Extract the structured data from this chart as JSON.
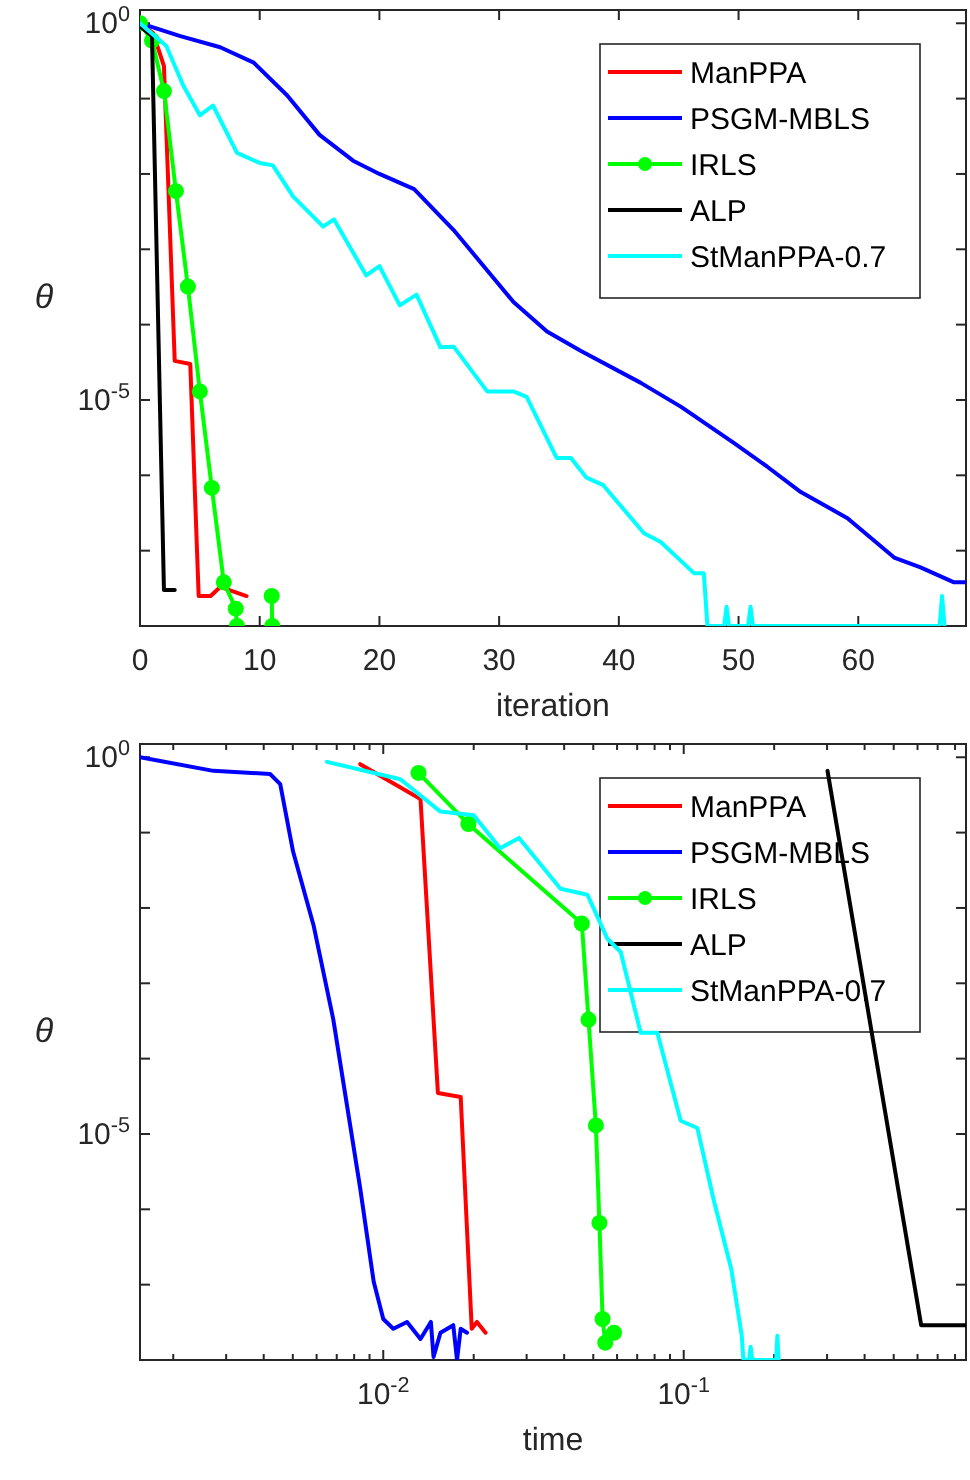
{
  "chart_data": [
    {
      "type": "line",
      "xlabel": "iteration",
      "ylabel": "θ",
      "log": "y",
      "grid": false,
      "legend": "top right",
      "marker": "none",
      "xlim": [
        0,
        69
      ],
      "ylim": [
        1e-08,
        1.5
      ],
      "xticks": [
        0,
        10,
        20,
        30,
        40,
        50,
        60
      ],
      "yticks": [
        {
          "value": 1e-08,
          "label": null
        },
        {
          "value": 1e-07,
          "label": null
        },
        {
          "value": 1e-06,
          "label": null
        },
        {
          "value": 1e-05,
          "label": "10$^{-5}$"
        },
        {
          "value": 0.0001,
          "label": null
        },
        {
          "value": 0.001,
          "label": null
        },
        {
          "value": 0.01,
          "label": null
        },
        {
          "value": 0.1,
          "label": null
        },
        {
          "value": 1,
          "label": "10$^{0}$"
        }
      ],
      "series": [
        {
          "name": "ManPPA",
          "color": "#ff0000",
          "x": [
            0,
            1.1,
            2,
            2.9,
            4.2,
            4.9,
            5.9,
            6.7,
            8.9
          ],
          "values": [
            1,
            0.74,
            0.27,
            3.3e-05,
            3e-05,
            2.5e-08,
            2.5e-08,
            3.3e-08,
            2.5e-08
          ]
        },
        {
          "name": "PSGM-MBLS",
          "color": "#0000ff",
          "x": [
            0,
            3.3,
            6.7,
            9.5,
            12.3,
            15,
            17.8,
            20,
            22.9,
            26.2,
            31.2,
            34,
            36.8,
            41.8,
            45.2,
            49.6,
            52.4,
            55.2,
            59.1,
            63,
            65.2,
            68,
            69
          ],
          "values": [
            1,
            0.68,
            0.48,
            0.3,
            0.11,
            0.033,
            0.015,
            0.01,
            0.0063,
            0.0018,
            0.0002,
            8.1e-05,
            4.5e-05,
            1.7e-05,
            8.1e-06,
            2.7e-06,
            1.3e-06,
            6e-07,
            2.7e-07,
            8.1e-08,
            6e-08,
            3.8e-08,
            3.8e-08
          ]
        },
        {
          "name": "IRLS",
          "color": "#00ff00",
          "marker": "circle",
          "x": [
            0,
            1,
            2,
            3,
            4,
            5,
            6,
            7,
            8,
            8.1,
            9,
            11,
            11.05
          ],
          "values": [
            1,
            0.59,
            0.126,
            0.0059,
            0.00032,
            1.3e-05,
            6.8e-07,
            3.8e-08,
            1.7e-08,
            1e-08,
            null,
            2.5e-08,
            1e-08
          ]
        },
        {
          "name": "ALP",
          "color": "#000000",
          "x": [
            0,
            1,
            2,
            2.9
          ],
          "values": [
            0.91,
            0.68,
            3e-08,
            3e-08
          ]
        },
        {
          "name": "StManPPA-0.7",
          "color": "#00ffff",
          "x": [
            0,
            2.2,
            3.6,
            5,
            6.1,
            8.1,
            10,
            11.1,
            12.8,
            15.3,
            16.2,
            18.9,
            20,
            21.7,
            23.1,
            25.1,
            26.2,
            29,
            31.2,
            32.3,
            34.8,
            36,
            37.3,
            38.7,
            42.1,
            43.5,
            46.3,
            47.1,
            47.4,
            48.8,
            49,
            49.2,
            50.8,
            51,
            51.2,
            66.8,
            67,
            67.2
          ],
          "values": [
            1,
            0.5,
            0.15,
            0.06,
            0.081,
            0.019,
            0.014,
            0.013,
            0.005,
            0.002,
            0.0025,
            0.00045,
            0.0006,
            0.00018,
            0.00025,
            5e-05,
            5.1e-05,
            1.3e-05,
            1.3e-05,
            1.1e-05,
            1.7e-06,
            1.7e-06,
            9.3e-07,
            7.4e-07,
            1.7e-07,
            1.3e-07,
            5e-08,
            5e-08,
            1e-08,
            1e-08,
            1.8e-08,
            1e-08,
            1e-08,
            1.8e-08,
            1e-08,
            1e-08,
            2.5e-08,
            1e-08
          ]
        }
      ]
    },
    {
      "type": "line",
      "xlabel": "time",
      "ylabel": "θ",
      "log": "xy",
      "grid": false,
      "legend": "top right",
      "marker": "none",
      "xlim": [
        0.00155,
        0.87
      ],
      "ylim": [
        1e-08,
        1.5
      ],
      "xticks": [
        {
          "value": 0.002,
          "label": null
        },
        {
          "value": 0.003,
          "label": null
        },
        {
          "value": 0.004,
          "label": null
        },
        {
          "value": 0.005,
          "label": null
        },
        {
          "value": 0.006,
          "label": null
        },
        {
          "value": 0.007,
          "label": null
        },
        {
          "value": 0.008,
          "label": null
        },
        {
          "value": 0.009,
          "label": null
        },
        {
          "value": 0.01,
          "label": "10$^{-2}$"
        },
        {
          "value": 0.02,
          "label": null
        },
        {
          "value": 0.03,
          "label": null
        },
        {
          "value": 0.04,
          "label": null
        },
        {
          "value": 0.05,
          "label": null
        },
        {
          "value": 0.06,
          "label": null
        },
        {
          "value": 0.07,
          "label": null
        },
        {
          "value": 0.08,
          "label": null
        },
        {
          "value": 0.09,
          "label": null
        },
        {
          "value": 0.1,
          "label": "10$^{-1}$"
        },
        {
          "value": 0.2,
          "label": null
        },
        {
          "value": 0.3,
          "label": null
        },
        {
          "value": 0.4,
          "label": null
        },
        {
          "value": 0.5,
          "label": null
        },
        {
          "value": 0.6,
          "label": null
        },
        {
          "value": 0.7,
          "label": null
        },
        {
          "value": 0.8,
          "label": null
        }
      ],
      "yticks": [
        {
          "value": 1e-08,
          "label": null
        },
        {
          "value": 1e-07,
          "label": null
        },
        {
          "value": 1e-06,
          "label": null
        },
        {
          "value": 1e-05,
          "label": "10$^{-5}$"
        },
        {
          "value": 0.0001,
          "label": null
        },
        {
          "value": 0.001,
          "label": null
        },
        {
          "value": 0.01,
          "label": null
        },
        {
          "value": 0.1,
          "label": null
        },
        {
          "value": 1,
          "label": "10$^{0}$"
        }
      ],
      "series": [
        {
          "name": "ManPPA",
          "color": "#ff0000",
          "x": [
            0.00838,
            0.0133,
            0.0152,
            0.0181,
            0.0197,
            0.0205,
            0.0219
          ],
          "values": [
            0.81,
            0.28,
            3.5e-05,
            3.1e-05,
            2.6e-08,
            3.2e-08,
            2.3e-08
          ]
        },
        {
          "name": "PSGM-MBLS",
          "color": "#0000ff",
          "x": [
            0.00155,
            0.00272,
            0.0042,
            0.00454,
            0.00501,
            0.00586,
            0.00682,
            0.00838,
            0.00929,
            0.01,
            0.0108,
            0.012,
            0.0133,
            0.0144,
            0.0147,
            0.0155,
            0.0171,
            0.0176,
            0.0181,
            0.019
          ],
          "values": [
            1,
            0.66,
            0.6,
            0.44,
            0.056,
            0.0059,
            0.00033,
            1.9e-06,
            1.1e-07,
            3.5e-08,
            2.6e-08,
            3.2e-08,
            1.9e-08,
            3.2e-08,
            1.1e-08,
            2.3e-08,
            2.9e-08,
            1e-08,
            2.6e-08,
            2.3e-08
          ]
        },
        {
          "name": "IRLS",
          "color": "#00ff00",
          "marker": "circle",
          "x": [
            0.0131,
            0.0192,
            0.0458,
            0.0482,
            0.051,
            0.0524,
            0.0537,
            0.0548,
            0.0586
          ],
          "values": [
            0.62,
            0.13,
            0.0062,
            0.00033,
            1.3e-05,
            6.6e-07,
            3.5e-08,
            1.7e-08,
            2.3e-08
          ]
        },
        {
          "name": "ALP",
          "color": "#000000",
          "x": [
            0.301,
            0.617,
            0.87
          ],
          "values": [
            0.66,
            2.9e-08,
            2.9e-08
          ]
        },
        {
          "name": "StManPPA-0.7",
          "color": "#00ffff",
          "x": [
            0.00649,
            0.0114,
            0.0155,
            0.02,
            0.0245,
            0.0283,
            0.0389,
            0.0478,
            0.0557,
            0.0617,
            0.0719,
            0.0817,
            0.0977,
            0.111,
            0.126,
            0.144,
            0.156,
            0.158,
            0.165,
            0.167,
            0.169,
            0.203,
            0.205,
            0.207
          ],
          "values": [
            0.87,
            0.51,
            0.19,
            0.17,
            0.062,
            0.085,
            0.018,
            0.015,
            0.0039,
            0.0026,
            0.00022,
            0.00022,
            1.5e-05,
            1.2e-05,
            1.3e-06,
            1.6e-07,
            2.1e-08,
            1e-08,
            1e-08,
            1.5e-08,
            1e-08,
            1e-08,
            2.1e-08,
            1e-08
          ]
        }
      ]
    }
  ]
}
